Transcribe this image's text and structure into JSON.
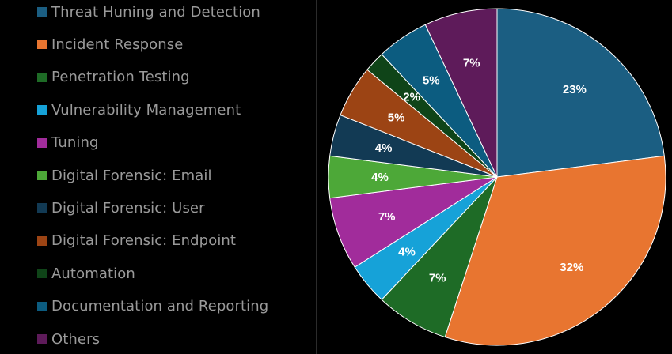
{
  "chart_data": {
    "type": "pie",
    "legend_position": "left",
    "slices": [
      {
        "label": "Threat Huning and Detection",
        "percent_label": "23%",
        "value": 23,
        "color": "#1b5e82"
      },
      {
        "label": "Incident Response",
        "percent_label": "32%",
        "value": 32,
        "color": "#e87530"
      },
      {
        "label": "Penetration Testing",
        "percent_label": "7%",
        "value": 7,
        "color": "#1e6b26"
      },
      {
        "label": "Vulnerability Management",
        "percent_label": "4%",
        "value": 4,
        "color": "#16a2d8"
      },
      {
        "label": "Tuning",
        "percent_label": "7%",
        "value": 7,
        "color": "#a12c9b"
      },
      {
        "label": "Digital Forensic: Email",
        "percent_label": "4%",
        "value": 4,
        "color": "#4da838"
      },
      {
        "label": "Digital Forensic: User",
        "percent_label": "4%",
        "value": 4,
        "color": "#123a54"
      },
      {
        "label": "Digital Forensic: Endpoint",
        "percent_label": "5%",
        "value": 5,
        "color": "#9c4414"
      },
      {
        "label": "Automation",
        "percent_label": "2%",
        "value": 2,
        "color": "#0f4418"
      },
      {
        "label": "Documentation and Reporting",
        "percent_label": "5%",
        "value": 5,
        "color": "#0c5c80"
      },
      {
        "label": "Others",
        "percent_label": "7%",
        "value": 7,
        "color": "#5e1b5a"
      }
    ]
  }
}
